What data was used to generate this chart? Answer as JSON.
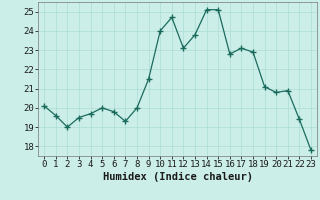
{
  "x": [
    0,
    1,
    2,
    3,
    4,
    5,
    6,
    7,
    8,
    9,
    10,
    11,
    12,
    13,
    14,
    15,
    16,
    17,
    18,
    19,
    20,
    21,
    22,
    23
  ],
  "y": [
    20.1,
    19.6,
    19.0,
    19.5,
    19.7,
    20.0,
    19.8,
    19.3,
    20.0,
    21.5,
    24.0,
    24.7,
    23.1,
    23.8,
    25.1,
    25.1,
    22.8,
    23.1,
    22.9,
    21.1,
    20.8,
    20.9,
    19.4,
    17.8
  ],
  "line_color": "#1a6b5e",
  "marker": "+",
  "marker_size": 4,
  "bg_color": "#cceee8",
  "grid_color": "#aaddd5",
  "xlabel": "Humidex (Indice chaleur)",
  "xlim": [
    -0.5,
    23.5
  ],
  "ylim": [
    17.5,
    25.5
  ],
  "yticks": [
    18,
    19,
    20,
    21,
    22,
    23,
    24,
    25
  ],
  "xticks": [
    0,
    1,
    2,
    3,
    4,
    5,
    6,
    7,
    8,
    9,
    10,
    11,
    12,
    13,
    14,
    15,
    16,
    17,
    18,
    19,
    20,
    21,
    22,
    23
  ],
  "tick_fontsize": 6.5,
  "xlabel_fontsize": 7.5
}
